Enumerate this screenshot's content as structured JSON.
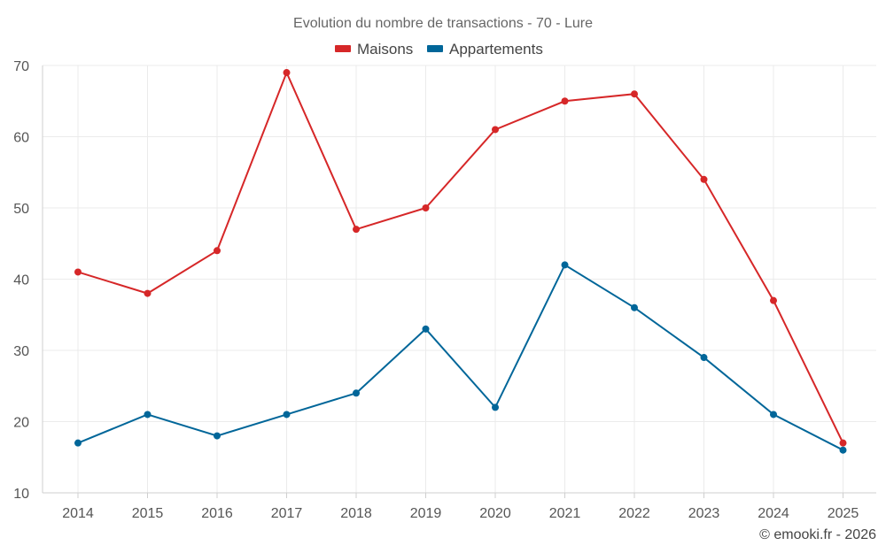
{
  "chart_data": {
    "type": "line",
    "title": "Evolution du nombre de transactions - 70 - Lure",
    "categories": [
      "2014",
      "2015",
      "2016",
      "2017",
      "2018",
      "2019",
      "2020",
      "2021",
      "2022",
      "2023",
      "2024",
      "2025"
    ],
    "series": [
      {
        "name": "Maisons",
        "color": "#d62728",
        "values": [
          41,
          38,
          44,
          69,
          47,
          50,
          61,
          65,
          66,
          54,
          37,
          17
        ]
      },
      {
        "name": "Appartements",
        "color": "#006699",
        "values": [
          17,
          21,
          18,
          21,
          24,
          33,
          22,
          42,
          36,
          29,
          21,
          16
        ]
      }
    ],
    "ylim": [
      10,
      70
    ],
    "yticks": [
      10,
      20,
      30,
      40,
      50,
      60,
      70
    ],
    "xlabel": "",
    "ylabel": "",
    "grid": true,
    "legend": "top-center"
  },
  "footer": "© emooki.fr - 2026"
}
